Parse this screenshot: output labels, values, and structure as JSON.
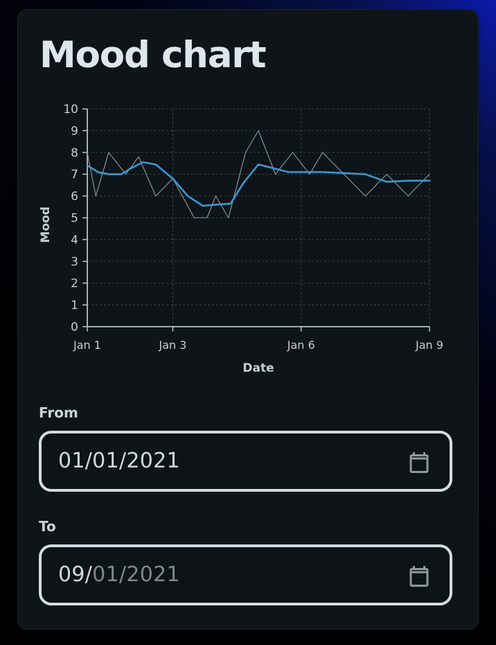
{
  "card": {
    "title": "Mood chart"
  },
  "chart_data": {
    "type": "line",
    "xlabel": "Date",
    "ylabel": "Mood",
    "ylim": [
      0,
      10
    ],
    "xlim": [
      "Jan 1",
      "Jan 9"
    ],
    "yticks": [
      "0",
      "1",
      "2",
      "3",
      "4",
      "5",
      "6",
      "7",
      "8",
      "9",
      "10"
    ],
    "xticks": [
      {
        "label": "Jan 1",
        "day": 1
      },
      {
        "label": "Jan 3",
        "day": 3
      },
      {
        "label": "Jan 6",
        "day": 6
      },
      {
        "label": "Jan 9",
        "day": 9
      }
    ],
    "grid": true,
    "series": [
      {
        "name": "",
        "style": "thin",
        "color": "#8aa0aa",
        "x": [
          1.0,
          1.2,
          1.5,
          1.9,
          2.2,
          2.6,
          3.0,
          3.5,
          3.8,
          4.0,
          4.3,
          4.7,
          5.0,
          5.4,
          5.8,
          6.2,
          6.5,
          7.0,
          7.5,
          8.0,
          8.5,
          9.0
        ],
        "y": [
          8,
          6,
          8,
          7,
          7.8,
          6,
          6.8,
          5,
          5,
          6,
          5,
          8,
          9,
          7,
          8,
          7,
          8,
          7,
          6,
          7,
          6,
          7
        ]
      },
      {
        "name": "",
        "style": "bold",
        "color": "#3b97d3",
        "x": [
          1.0,
          1.25,
          1.5,
          1.8,
          2.0,
          2.3,
          2.6,
          3.0,
          3.35,
          3.7,
          4.0,
          4.35,
          4.65,
          5.0,
          5.3,
          5.7,
          6.0,
          6.5,
          7.0,
          7.5,
          8.0,
          8.5,
          9.0
        ],
        "y": [
          7.4,
          7.1,
          7.0,
          7.0,
          7.25,
          7.55,
          7.45,
          6.8,
          6.0,
          5.55,
          5.6,
          5.65,
          6.6,
          7.45,
          7.3,
          7.1,
          7.1,
          7.1,
          7.05,
          7.0,
          6.65,
          6.7,
          6.7
        ]
      }
    ]
  },
  "form": {
    "from_label": "From",
    "from_value": "01/01/2021",
    "to_label": "To",
    "to_value_edited": "09/",
    "to_value_dimmed": "01/2021",
    "calendar_icon": "calendar-icon"
  },
  "colors": {
    "card_bg": "#0e1418",
    "accent_line": "#3b97d3",
    "field_border": "#d2dde2"
  }
}
